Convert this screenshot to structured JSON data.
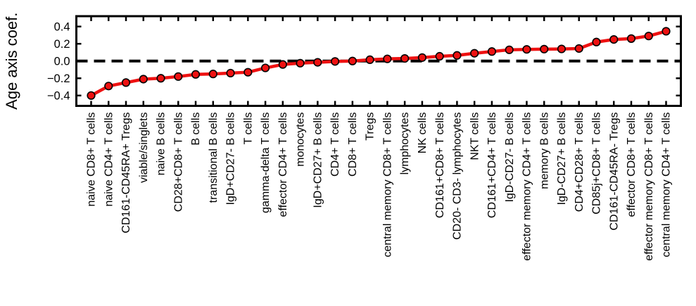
{
  "chart_data": {
    "type": "line",
    "title": "",
    "xlabel": "",
    "ylabel": "Age axis coef.",
    "categories": [
      "naive CD8+ T cells",
      "naive CD4+ T cells",
      "CD161-CD45RA+ Tregs",
      "viable/singlets",
      "naive B cells",
      "CD28+CD8+ T cells",
      "B cells",
      "transitional B cells",
      "IgD+CD27- B cells",
      "T cells",
      "gamma-delta T cells",
      "effector CD4+ T cells",
      "monocytes",
      "IgD+CD27+ B cells",
      "CD4+ T cells",
      "CD8+ T cells",
      "Tregs",
      "central memory CD8+ T cells",
      "lymphocytes",
      "NK cells",
      "CD161+CD8+ T cells",
      "CD20- CD3- lymphocytes",
      "NKT cells",
      "CD161+CD4+ T cells",
      "IgD-CD27- B cells",
      "effector memory CD4+ T cells",
      "memory B cells",
      "IgD-CD27+ B cells",
      "CD4+CD28+ T cells",
      "CD85j+CD8+ T cells",
      "CD161-CD45RA- Tregs",
      "effector CD8+ T cells",
      "effector memory CD8+ T cells",
      "central memory CD4+ T cells"
    ],
    "values": [
      -0.4,
      -0.29,
      -0.25,
      -0.21,
      -0.2,
      -0.18,
      -0.155,
      -0.15,
      -0.14,
      -0.13,
      -0.08,
      -0.04,
      -0.025,
      -0.015,
      -0.005,
      0.0,
      0.015,
      0.025,
      0.03,
      0.04,
      0.055,
      0.065,
      0.09,
      0.11,
      0.13,
      0.135,
      0.138,
      0.14,
      0.145,
      0.22,
      0.25,
      0.26,
      0.29,
      0.345
    ],
    "yticks": [
      0.4,
      0.2,
      0.0,
      -0.2,
      -0.4
    ],
    "ytick_labels": [
      "0.4",
      "0.2",
      "0.0",
      "−0.2",
      "−0.4"
    ],
    "ylim": [
      -0.52,
      0.52
    ],
    "x_tick_label_rotation_deg": 90,
    "grid": false,
    "legend": false,
    "zero_line": {
      "value": 0.0,
      "style": "dashed",
      "color": "#000000"
    },
    "line_color": "#ee1111",
    "marker": {
      "shape": "circle",
      "fill": "#ee1111",
      "edge": "#000000"
    },
    "axis_color": "#000000",
    "background_color": "#ffffff"
  }
}
